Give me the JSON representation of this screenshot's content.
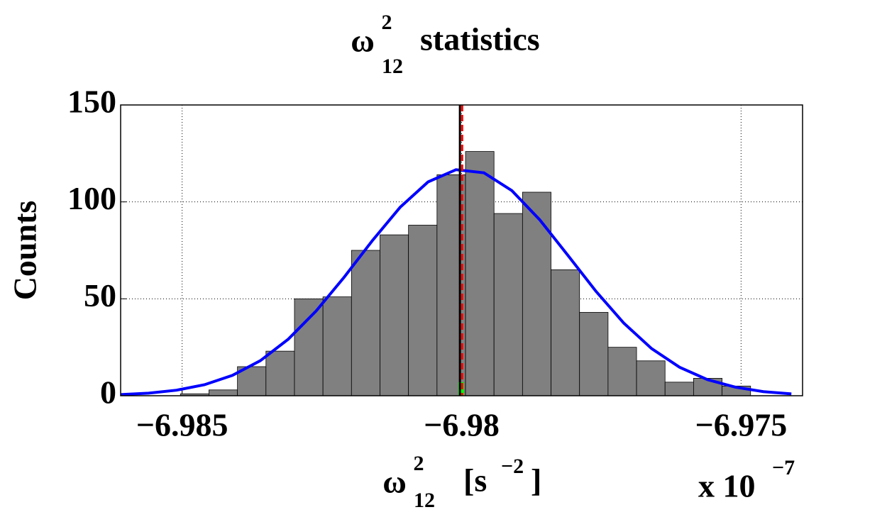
{
  "chart_data": {
    "type": "histogram",
    "title": {
      "symbol": "ω",
      "sup": "2",
      "sub": "12",
      "text": "statistics"
    },
    "xlabel": {
      "symbol": "ω",
      "sup": "2",
      "sub": "12",
      "unit": "[s",
      "unit_sup": "−2",
      "unit_end": "]"
    },
    "ylabel": "Counts",
    "x_multiplier": {
      "text": "x 10",
      "sup": "−7"
    },
    "bins": [
      -6.98503,
      -6.98452,
      -6.98401,
      -6.9835,
      -6.98299,
      -6.98248,
      -6.98197,
      -6.98146,
      -6.98095,
      -6.98044,
      -6.97993,
      -6.97942,
      -6.97891,
      -6.9784,
      -6.97789,
      -6.97738,
      -6.97687,
      -6.97636,
      -6.97585,
      -6.97534,
      -6.97483
    ],
    "counts": [
      1,
      3,
      15,
      23,
      50,
      51,
      75,
      83,
      88,
      114,
      126,
      94,
      105,
      65,
      43,
      25,
      18,
      7,
      9,
      5
    ],
    "color": "#808080",
    "fit": {
      "color": "#0000ff",
      "x": [
        -6.9861,
        -6.9856,
        -6.9851,
        -6.9846,
        -6.9841,
        -6.9836,
        -6.9831,
        -6.9826,
        -6.9821,
        -6.9816,
        -6.9811,
        -6.9806,
        -6.9801,
        -6.9796,
        -6.9791,
        -6.9786,
        -6.9781,
        -6.9776,
        -6.9771,
        -6.9766,
        -6.9761,
        -6.9756,
        -6.9751,
        -6.9746,
        -6.9741
      ],
      "y": [
        0.59,
        1.34,
        2.86,
        5.68,
        10.5,
        18.1,
        29.2,
        43.8,
        61.2,
        79.9,
        97.2,
        110.3,
        116.6,
        115.0,
        105.8,
        90.7,
        72.5,
        54.0,
        37.5,
        24.3,
        14.7,
        8.3,
        4.4,
        2.1,
        0.97
      ]
    },
    "vlines": [
      {
        "x": -6.98003,
        "color": "#000000",
        "style": "solid"
      },
      {
        "x": -6.97999,
        "color": "#ff0000",
        "style": "dashed"
      }
    ],
    "marker": {
      "bins": [
        -6.98006,
        -6.97996
      ],
      "counts": [
        7
      ],
      "color": "#00ff00"
    },
    "xlim": [
      -6.9861,
      -6.9739
    ],
    "ylim": [
      0,
      150
    ],
    "xticks": [
      {
        "value": -6.985,
        "label": "−6.985"
      },
      {
        "value": -6.98,
        "label": "−6.98"
      },
      {
        "value": -6.975,
        "label": "−6.975"
      }
    ],
    "yticks": [
      0,
      50,
      100,
      150
    ],
    "grid": true
  }
}
